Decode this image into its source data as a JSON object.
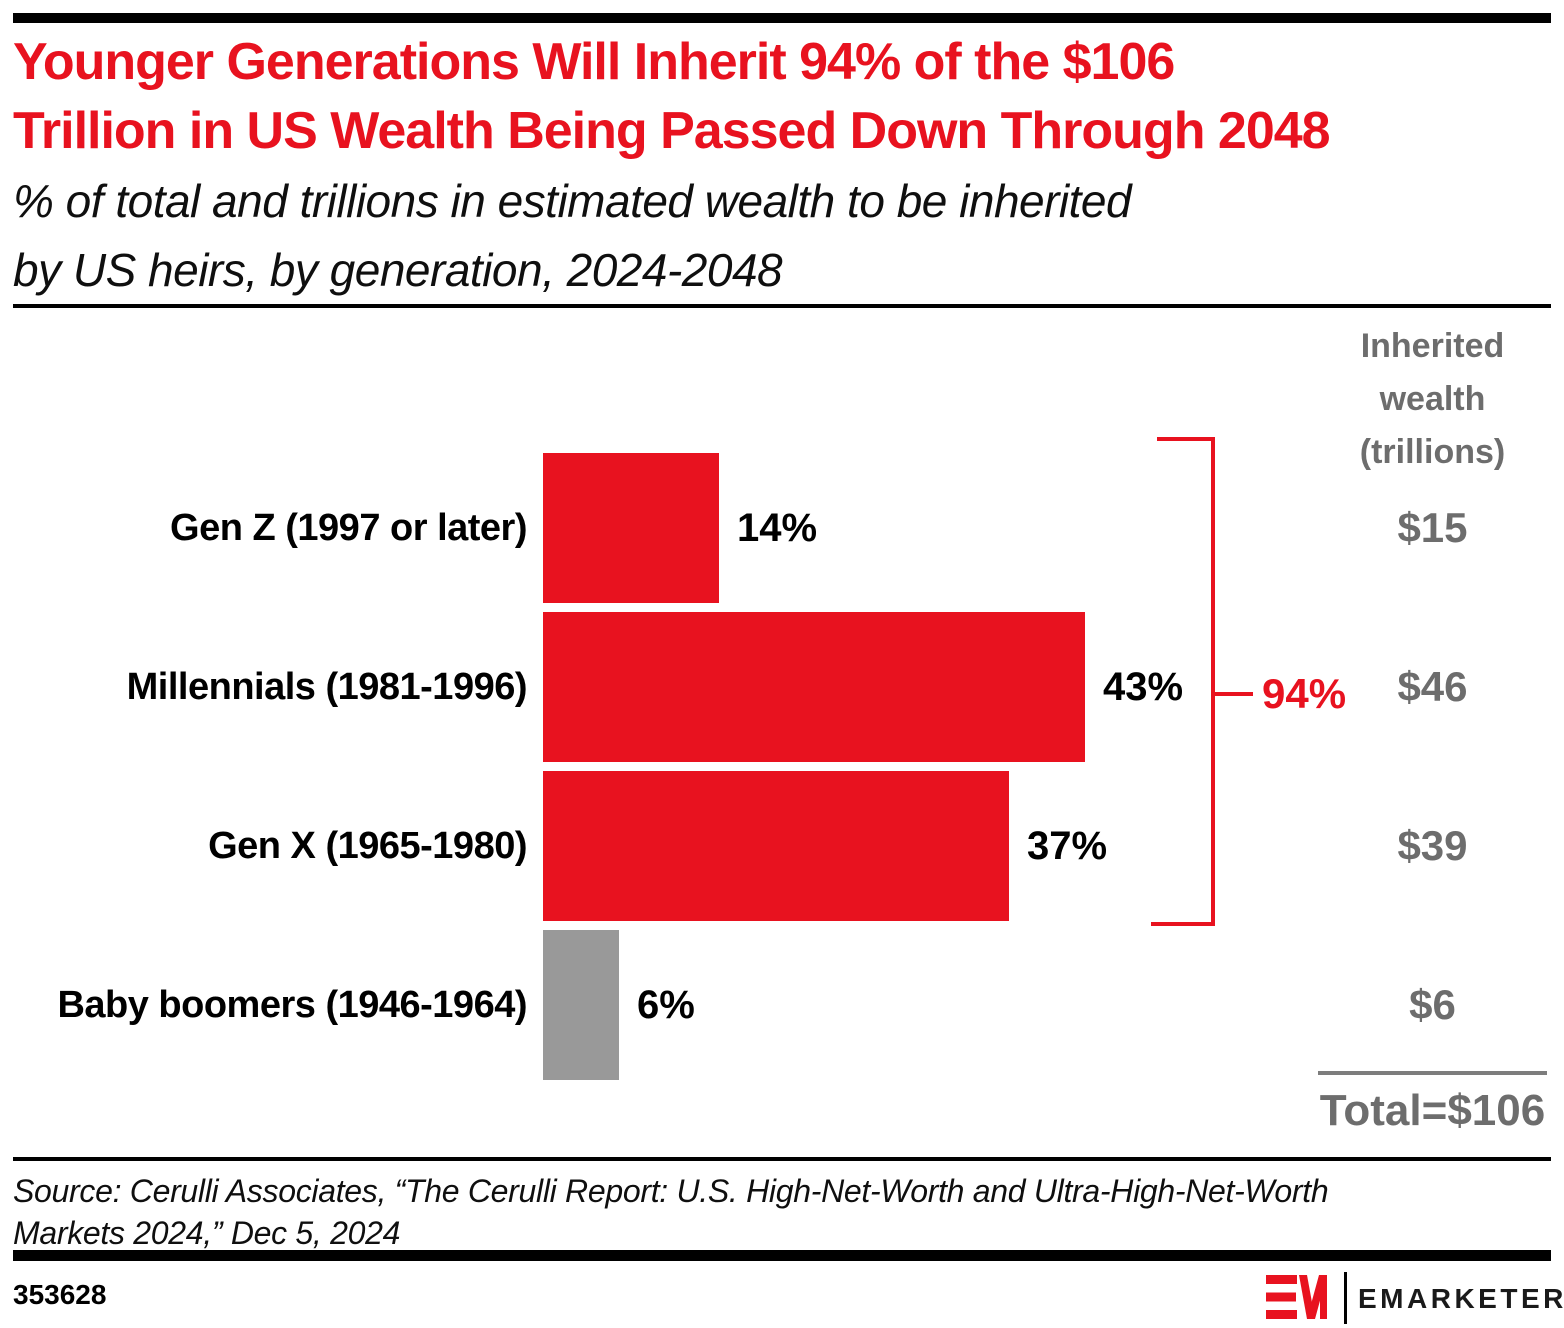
{
  "page": {
    "title_lines": [
      "Younger Generations Will Inherit 94% of the $106",
      "Trillion in US Wealth Being Passed Down Through 2048"
    ],
    "subtitle_lines": [
      "% of total and trillions in estimated wealth to be inherited",
      "by US heirs, by generation, 2024-2048"
    ],
    "source_lines": [
      "Source: Cerulli Associates, “The Cerulli Report: U.S. High-Net-Worth and Ultra-High-Net-Worth",
      "Markets 2024,” Dec 5, 2024"
    ],
    "chart_id": "353628",
    "brand_name": "EMARKETER"
  },
  "chart_data": {
    "type": "bar",
    "orientation": "horizontal",
    "title": "Younger Generations Will Inherit 94% of the $106 Trillion in US Wealth Being Passed Down Through 2048",
    "subtitle": "% of total and trillions in estimated wealth to be inherited by US heirs, by generation, 2024-2048",
    "categories": [
      "Gen Z (1997 or later)",
      "Millennials (1981-1996)",
      "Gen X (1965-1980)",
      "Baby boomers (1946-1964)"
    ],
    "values_pct": [
      14,
      43,
      37,
      6
    ],
    "value_labels": [
      "14%",
      "43%",
      "37%",
      "6%"
    ],
    "wealth_trillions": [
      15,
      46,
      39,
      6
    ],
    "wealth_labels": [
      "$15",
      "$46",
      "$39",
      "$6"
    ],
    "column_header_lines": [
      "Inherited",
      "wealth",
      "(trillions)"
    ],
    "bracket": {
      "label": "94%",
      "rows_covered": [
        0,
        1,
        2
      ]
    },
    "total_label": "Total=$106",
    "xlim": [
      0,
      43
    ],
    "grid": false,
    "colors": {
      "highlight": "#e8121f",
      "muted": "#999999",
      "value_text": "#6d6d6d"
    },
    "row_colors": [
      "highlight",
      "highlight",
      "highlight",
      "muted"
    ]
  }
}
